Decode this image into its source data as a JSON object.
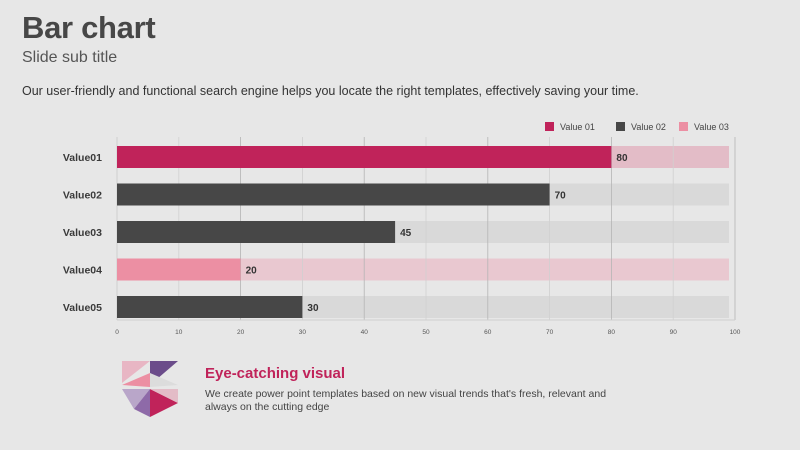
{
  "slide": {
    "title": "Bar chart",
    "subtitle": "Slide sub title",
    "intro": "Our user-friendly and functional search engine helps you locate the right templates, effectively saving your time."
  },
  "chart_data": {
    "type": "bar",
    "orientation": "horizontal",
    "categories": [
      "Value01",
      "Value02",
      "Value03",
      "Value04",
      "Value05"
    ],
    "series": [
      {
        "name": "Value 01",
        "color": "#c0235a",
        "values": [
          80,
          null,
          null,
          null,
          null
        ]
      },
      {
        "name": "Value 02",
        "color": "#474747",
        "values": [
          null,
          70,
          45,
          null,
          30
        ]
      },
      {
        "name": "Value 03",
        "color": "#ec8fa3",
        "values": [
          null,
          null,
          null,
          20,
          null
        ]
      }
    ],
    "values": [
      80,
      70,
      45,
      20,
      30
    ],
    "bar_colors": [
      "#c0235a",
      "#474747",
      "#474747",
      "#ec8fa3",
      "#474747"
    ],
    "track_colors": [
      "#e3bcc7",
      "#d9d9d9",
      "#d9d9d9",
      "#e9c8d0",
      "#d9d9d9"
    ],
    "xlim": [
      0,
      100
    ],
    "xticks": [
      0,
      10,
      20,
      30,
      40,
      50,
      60,
      70,
      80,
      90,
      100
    ],
    "grid": true,
    "legend_position": "top-right"
  },
  "footer": {
    "title": "Eye-catching visual",
    "text": "We create power point templates based on new visual trends that's fresh, relevant and always on the cutting edge"
  },
  "logo": {
    "icon": "triangle-mosaic-icon",
    "colors": [
      "#c0235a",
      "#ec8fa3",
      "#6b4c8a",
      "#b9a6c9",
      "#dcdcdc"
    ]
  }
}
